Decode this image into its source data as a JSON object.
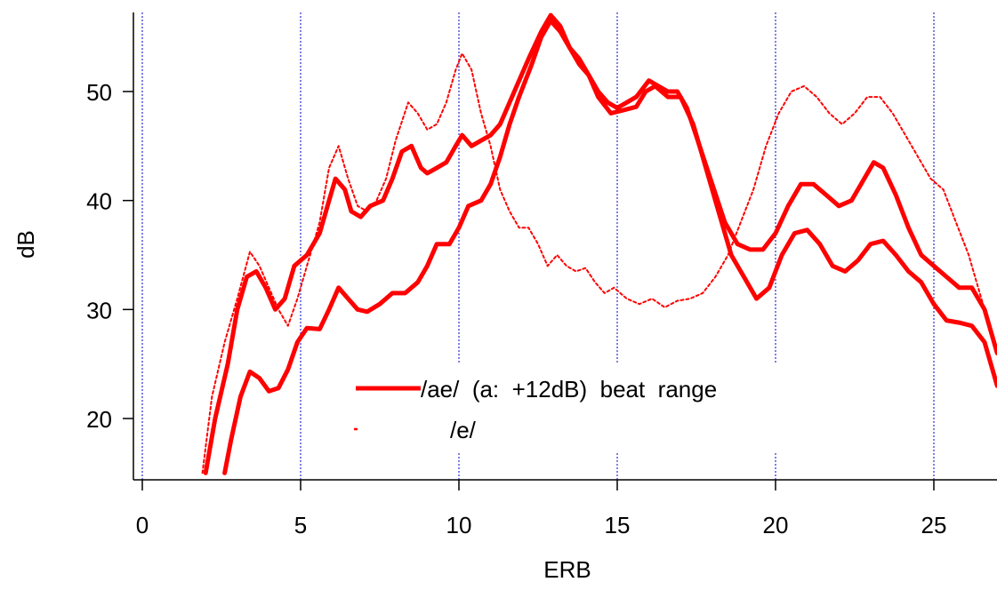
{
  "chart_data": {
    "type": "line",
    "xlabel": "ERB",
    "ylabel": "dB",
    "xlim": [
      -0.3,
      27
    ],
    "ylim": [
      14.5,
      57.5
    ],
    "x_ticks": [
      0,
      5,
      10,
      15,
      20,
      25
    ],
    "x_tick_labels": [
      "0",
      "5",
      "10",
      "15",
      "20",
      "25"
    ],
    "y_ticks": [
      20,
      30,
      40,
      50
    ],
    "y_tick_labels": [
      "20",
      "30",
      "40",
      "50"
    ],
    "grid": "vertical dotted lines at x ticks",
    "legend": {
      "position": "lower-center",
      "entries": [
        {
          "text": "/ae/  (a:  +12dB)  beat  range",
          "style": "thick-solid"
        },
        {
          "text": "/e/",
          "style": "dotted"
        }
      ]
    },
    "colors": {
      "series": "#ff0000",
      "grid": "#0000cc",
      "axis": "#000000"
    },
    "series": [
      {
        "style": "thick-solid",
        "points": [
          [
            2.0,
            15
          ],
          [
            2.3,
            20
          ],
          [
            2.7,
            25
          ],
          [
            3.0,
            30
          ],
          [
            3.3,
            33
          ],
          [
            3.6,
            33.5
          ],
          [
            3.9,
            32
          ],
          [
            4.2,
            30
          ],
          [
            4.5,
            31
          ],
          [
            4.8,
            34
          ],
          [
            5.2,
            35
          ],
          [
            5.6,
            37
          ],
          [
            5.9,
            40
          ],
          [
            6.1,
            42
          ],
          [
            6.4,
            41
          ],
          [
            6.6,
            39
          ],
          [
            6.9,
            38.5
          ],
          [
            7.2,
            39.5
          ],
          [
            7.6,
            40
          ],
          [
            7.9,
            42
          ],
          [
            8.2,
            44.5
          ],
          [
            8.5,
            45
          ],
          [
            8.8,
            43
          ],
          [
            9.0,
            42.5
          ],
          [
            9.3,
            43
          ],
          [
            9.6,
            43.5
          ],
          [
            9.9,
            45
          ],
          [
            10.1,
            46
          ],
          [
            10.4,
            45
          ],
          [
            10.7,
            45.5
          ],
          [
            11.0,
            46
          ],
          [
            11.3,
            47
          ],
          [
            11.6,
            49
          ],
          [
            11.9,
            51
          ],
          [
            12.2,
            53
          ],
          [
            12.6,
            55.5
          ],
          [
            12.9,
            57
          ],
          [
            13.2,
            56
          ],
          [
            13.5,
            54
          ],
          [
            13.8,
            52.5
          ],
          [
            14.1,
            51.5
          ],
          [
            14.4,
            50
          ],
          [
            14.7,
            49
          ],
          [
            15.0,
            48.5
          ],
          [
            15.3,
            49
          ],
          [
            15.6,
            49.5
          ],
          [
            16.0,
            51
          ],
          [
            16.3,
            50.5
          ],
          [
            16.6,
            50
          ],
          [
            16.9,
            50
          ],
          [
            17.2,
            48.5
          ],
          [
            17.6,
            45
          ],
          [
            18.0,
            41.5
          ],
          [
            18.4,
            38
          ],
          [
            18.8,
            36
          ],
          [
            19.2,
            35.5
          ],
          [
            19.6,
            35.5
          ],
          [
            20.0,
            37
          ],
          [
            20.4,
            39.5
          ],
          [
            20.8,
            41.5
          ],
          [
            21.2,
            41.5
          ],
          [
            21.6,
            40.5
          ],
          [
            22.0,
            39.5
          ],
          [
            22.4,
            40
          ],
          [
            22.8,
            42
          ],
          [
            23.1,
            43.5
          ],
          [
            23.4,
            43
          ],
          [
            23.8,
            40.5
          ],
          [
            24.2,
            37.5
          ],
          [
            24.6,
            35
          ],
          [
            25.0,
            34
          ],
          [
            25.4,
            33
          ],
          [
            25.8,
            32
          ],
          [
            26.2,
            32
          ],
          [
            26.6,
            30
          ],
          [
            27.0,
            26
          ]
        ]
      },
      {
        "style": "thick-solid",
        "points": [
          [
            2.6,
            15
          ],
          [
            2.8,
            18
          ],
          [
            3.1,
            22
          ],
          [
            3.4,
            24.3
          ],
          [
            3.7,
            23.7
          ],
          [
            4.0,
            22.5
          ],
          [
            4.3,
            22.8
          ],
          [
            4.6,
            24.5
          ],
          [
            4.9,
            27
          ],
          [
            5.2,
            28.3
          ],
          [
            5.6,
            28.2
          ],
          [
            5.9,
            30
          ],
          [
            6.2,
            32
          ],
          [
            6.5,
            31
          ],
          [
            6.8,
            30
          ],
          [
            7.1,
            29.8
          ],
          [
            7.5,
            30.5
          ],
          [
            7.9,
            31.5
          ],
          [
            8.3,
            31.5
          ],
          [
            8.7,
            32.5
          ],
          [
            9.0,
            34
          ],
          [
            9.3,
            36
          ],
          [
            9.7,
            36
          ],
          [
            10.0,
            37.5
          ],
          [
            10.3,
            39.5
          ],
          [
            10.7,
            40
          ],
          [
            11.0,
            41.5
          ],
          [
            11.3,
            44
          ],
          [
            11.6,
            47
          ],
          [
            11.9,
            49.5
          ],
          [
            12.3,
            52.5
          ],
          [
            12.6,
            55
          ],
          [
            12.9,
            56.5
          ],
          [
            13.2,
            55.5
          ],
          [
            13.5,
            54
          ],
          [
            13.8,
            53
          ],
          [
            14.1,
            51.5
          ],
          [
            14.4,
            49.5
          ],
          [
            14.8,
            48
          ],
          [
            15.2,
            48.3
          ],
          [
            15.6,
            48.6
          ],
          [
            15.9,
            50
          ],
          [
            16.2,
            50.5
          ],
          [
            16.6,
            49.5
          ],
          [
            17.0,
            49.5
          ],
          [
            17.4,
            47
          ],
          [
            17.8,
            43
          ],
          [
            18.2,
            39
          ],
          [
            18.6,
            35
          ],
          [
            19.0,
            33
          ],
          [
            19.4,
            31
          ],
          [
            19.8,
            32
          ],
          [
            20.2,
            35
          ],
          [
            20.6,
            37
          ],
          [
            21.0,
            37.3
          ],
          [
            21.4,
            36
          ],
          [
            21.8,
            34
          ],
          [
            22.2,
            33.5
          ],
          [
            22.6,
            34.5
          ],
          [
            23.0,
            36
          ],
          [
            23.4,
            36.3
          ],
          [
            23.8,
            35
          ],
          [
            24.2,
            33.5
          ],
          [
            24.6,
            32.5
          ],
          [
            25.0,
            30.5
          ],
          [
            25.4,
            29
          ],
          [
            25.8,
            28.8
          ],
          [
            26.2,
            28.5
          ],
          [
            26.6,
            27
          ],
          [
            27.0,
            23
          ]
        ]
      },
      {
        "style": "dotted",
        "points": [
          [
            1.9,
            15
          ],
          [
            2.2,
            22
          ],
          [
            2.6,
            27
          ],
          [
            3.0,
            31
          ],
          [
            3.4,
            35.3
          ],
          [
            3.7,
            34
          ],
          [
            4.0,
            32
          ],
          [
            4.3,
            30
          ],
          [
            4.6,
            28.5
          ],
          [
            4.9,
            31
          ],
          [
            5.2,
            34
          ],
          [
            5.6,
            38
          ],
          [
            5.9,
            43
          ],
          [
            6.2,
            45
          ],
          [
            6.5,
            42
          ],
          [
            6.8,
            39.5
          ],
          [
            7.1,
            39
          ],
          [
            7.4,
            40
          ],
          [
            7.7,
            42
          ],
          [
            8.0,
            45.5
          ],
          [
            8.4,
            49
          ],
          [
            8.7,
            48
          ],
          [
            9.0,
            46.5
          ],
          [
            9.3,
            47
          ],
          [
            9.6,
            49
          ],
          [
            9.9,
            52
          ],
          [
            10.1,
            53.5
          ],
          [
            10.4,
            52
          ],
          [
            10.7,
            48
          ],
          [
            11.0,
            45
          ],
          [
            11.3,
            41
          ],
          [
            11.6,
            39
          ],
          [
            11.9,
            37.5
          ],
          [
            12.2,
            37.5
          ],
          [
            12.5,
            36
          ],
          [
            12.8,
            34
          ],
          [
            13.1,
            35
          ],
          [
            13.4,
            34
          ],
          [
            13.7,
            33.5
          ],
          [
            14.0,
            33.8
          ],
          [
            14.3,
            32.5
          ],
          [
            14.6,
            31.5
          ],
          [
            14.9,
            32
          ],
          [
            15.3,
            31
          ],
          [
            15.7,
            30.5
          ],
          [
            16.1,
            31
          ],
          [
            16.5,
            30.2
          ],
          [
            16.9,
            30.8
          ],
          [
            17.3,
            31
          ],
          [
            17.7,
            31.5
          ],
          [
            18.1,
            33
          ],
          [
            18.5,
            35
          ],
          [
            18.9,
            38
          ],
          [
            19.3,
            41
          ],
          [
            19.7,
            45
          ],
          [
            20.1,
            48
          ],
          [
            20.5,
            50
          ],
          [
            20.9,
            50.5
          ],
          [
            21.3,
            49.5
          ],
          [
            21.7,
            48
          ],
          [
            22.1,
            47
          ],
          [
            22.5,
            48
          ],
          [
            22.9,
            49.5
          ],
          [
            23.3,
            49.5
          ],
          [
            23.7,
            48
          ],
          [
            24.1,
            46
          ],
          [
            24.5,
            44
          ],
          [
            24.9,
            42
          ],
          [
            25.3,
            41
          ],
          [
            25.7,
            38
          ],
          [
            26.1,
            35
          ],
          [
            26.5,
            31
          ],
          [
            27.0,
            26
          ]
        ]
      }
    ]
  }
}
